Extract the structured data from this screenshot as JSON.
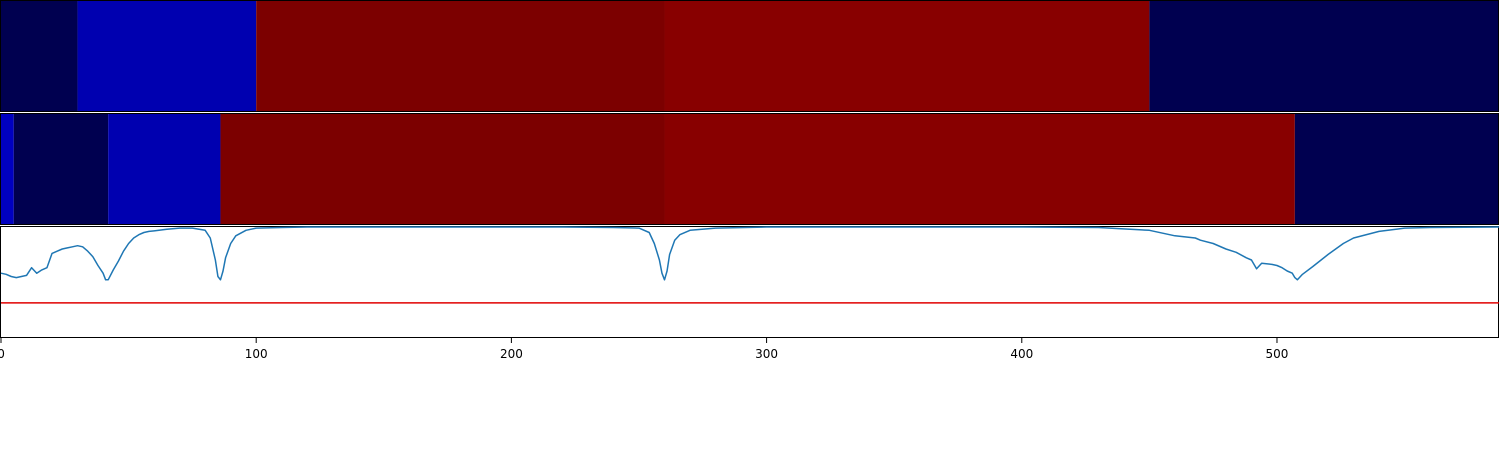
{
  "chart_data": [
    {
      "type": "heatmap",
      "title": "",
      "xlim": [
        0,
        587
      ],
      "segments": [
        {
          "start": 0,
          "end": 30,
          "color": "#000050"
        },
        {
          "start": 30,
          "end": 100,
          "color": "#0000b0"
        },
        {
          "start": 100,
          "end": 260,
          "color": "#7c0000"
        },
        {
          "start": 260,
          "end": 450,
          "color": "#880000"
        },
        {
          "start": 450,
          "end": 587,
          "color": "#000050"
        }
      ]
    },
    {
      "type": "heatmap",
      "title": "",
      "xlim": [
        0,
        587
      ],
      "segments": [
        {
          "start": 0,
          "end": 5,
          "color": "#0000c0"
        },
        {
          "start": 5,
          "end": 42,
          "color": "#000050"
        },
        {
          "start": 42,
          "end": 86,
          "color": "#0000b0"
        },
        {
          "start": 86,
          "end": 260,
          "color": "#7c0000"
        },
        {
          "start": 260,
          "end": 507,
          "color": "#880000"
        },
        {
          "start": 507,
          "end": 587,
          "color": "#000050"
        }
      ]
    },
    {
      "type": "line",
      "title": "",
      "xlabel": "",
      "ylabel": "",
      "xlim": [
        0,
        587
      ],
      "ylim": [
        0,
        1
      ],
      "x_ticks": [
        0,
        100,
        200,
        300,
        400,
        500
      ],
      "threshold": {
        "value": 0.31,
        "color": "#e00000"
      },
      "series": [
        {
          "color": "#1f77b4",
          "x": [
            0,
            2,
            4,
            6,
            8,
            10,
            12,
            14,
            16,
            18,
            20,
            22,
            24,
            26,
            28,
            30,
            32,
            34,
            36,
            38,
            40,
            41,
            42,
            44,
            46,
            48,
            50,
            52,
            54,
            56,
            58,
            60,
            65,
            70,
            75,
            80,
            82,
            84,
            85,
            86,
            87,
            88,
            90,
            92,
            96,
            100,
            110,
            120,
            140,
            160,
            180,
            200,
            220,
            240,
            250,
            254,
            256,
            258,
            259,
            260,
            261,
            262,
            264,
            266,
            270,
            280,
            300,
            350,
            400,
            430,
            450,
            460,
            468,
            470,
            475,
            480,
            484,
            488,
            490,
            492,
            494,
            498,
            500,
            502,
            504,
            506,
            507,
            508,
            510,
            514,
            520,
            526,
            530,
            540,
            550,
            560,
            587
          ],
          "y": [
            0.58,
            0.57,
            0.55,
            0.54,
            0.55,
            0.56,
            0.63,
            0.58,
            0.61,
            0.63,
            0.76,
            0.78,
            0.8,
            0.81,
            0.82,
            0.83,
            0.82,
            0.78,
            0.73,
            0.65,
            0.58,
            0.52,
            0.52,
            0.61,
            0.69,
            0.78,
            0.85,
            0.9,
            0.93,
            0.95,
            0.96,
            0.965,
            0.98,
            0.99,
            0.99,
            0.97,
            0.9,
            0.7,
            0.55,
            0.52,
            0.6,
            0.72,
            0.85,
            0.92,
            0.97,
            0.99,
            0.995,
            1.0,
            1.0,
            1.0,
            1.0,
            1.0,
            1.0,
            0.995,
            0.99,
            0.95,
            0.85,
            0.7,
            0.58,
            0.52,
            0.6,
            0.75,
            0.88,
            0.93,
            0.97,
            0.99,
            1.0,
            1.0,
            1.0,
            0.995,
            0.97,
            0.92,
            0.9,
            0.88,
            0.85,
            0.8,
            0.77,
            0.72,
            0.7,
            0.62,
            0.67,
            0.66,
            0.65,
            0.63,
            0.6,
            0.58,
            0.54,
            0.52,
            0.57,
            0.64,
            0.75,
            0.85,
            0.9,
            0.96,
            0.99,
            0.995,
            1.0
          ]
        }
      ]
    }
  ]
}
